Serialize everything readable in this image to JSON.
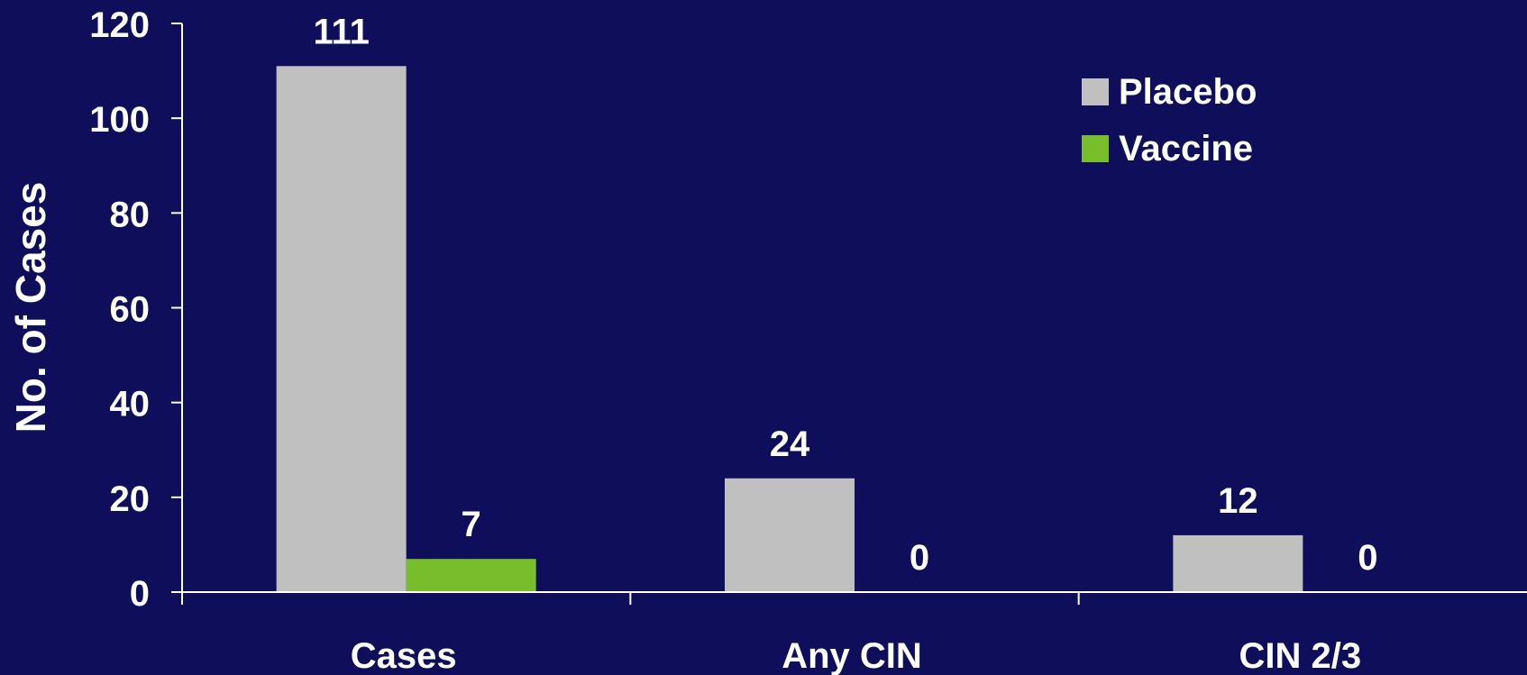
{
  "chart_data": {
    "type": "bar",
    "categories": [
      "Cases",
      "Any CIN",
      "CIN 2/3"
    ],
    "series": [
      {
        "name": "Placebo",
        "values": [
          111,
          24,
          12
        ]
      },
      {
        "name": "Vaccine",
        "values": [
          7,
          0,
          0
        ]
      }
    ],
    "data_labels": [
      [
        "111",
        "24",
        "12"
      ],
      [
        "7",
        "0",
        "0"
      ]
    ],
    "ylabel": "No. of Cases",
    "ylim": [
      0,
      120
    ],
    "yticks": [
      0,
      20,
      40,
      60,
      80,
      100,
      120
    ],
    "grid": false,
    "legend_position": "top-right"
  },
  "colors": {
    "background": "#0e0e5a",
    "axis": "#ffffff",
    "text": "#ffffff",
    "series": [
      "#c0c0c0",
      "#78be2c"
    ]
  }
}
